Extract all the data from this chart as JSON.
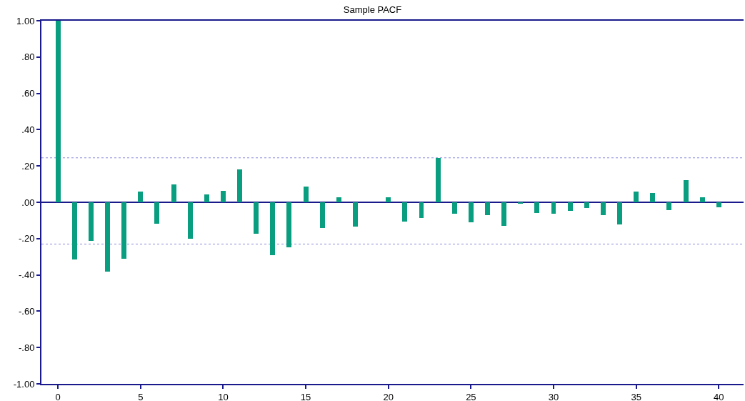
{
  "chart_data": {
    "type": "bar",
    "title": "Sample PACF",
    "x": [
      0,
      1,
      2,
      3,
      4,
      5,
      6,
      7,
      8,
      9,
      10,
      11,
      12,
      13,
      14,
      15,
      16,
      17,
      18,
      19,
      20,
      21,
      22,
      23,
      24,
      25,
      26,
      27,
      28,
      29,
      30,
      31,
      32,
      33,
      34,
      35,
      36,
      37,
      38,
      39,
      40
    ],
    "values": [
      1.0,
      -0.316,
      -0.213,
      -0.381,
      -0.31,
      0.058,
      -0.118,
      0.1,
      -0.2,
      0.045,
      0.063,
      0.183,
      -0.172,
      -0.291,
      -0.249,
      0.086,
      -0.141,
      0.026,
      -0.135,
      0,
      0.026,
      -0.105,
      -0.086,
      0.244,
      -0.063,
      -0.111,
      -0.069,
      -0.128,
      -0.008,
      -0.058,
      -0.063,
      -0.046,
      -0.033,
      -0.069,
      -0.123,
      0.058,
      0.051,
      -0.045,
      0.123,
      0.026,
      -0.026
    ],
    "color": "#0a9e80",
    "xlim": [
      -1,
      41.5
    ],
    "xticks": [
      0,
      5,
      10,
      15,
      20,
      25,
      30,
      35,
      40
    ],
    "ylim": [
      -1,
      1
    ],
    "yticks": [
      {
        "value": -1,
        "label": "-1.00"
      },
      {
        "value": -0.8,
        "label": "-.80"
      },
      {
        "value": -0.6,
        "label": "-.60"
      },
      {
        "value": -0.4,
        "label": "-.40"
      },
      {
        "value": -0.2,
        "label": "-.20"
      },
      {
        "value": 0,
        "label": ".00"
      },
      {
        "value": 0.2,
        "label": ".20"
      },
      {
        "value": 0.4,
        "label": ".40"
      },
      {
        "value": 0.6,
        "label": ".60"
      },
      {
        "value": 0.8,
        "label": ".80"
      },
      {
        "value": 1,
        "label": "1.00"
      }
    ],
    "ref_lines": [
      {
        "axis": "y",
        "value": 0,
        "label": null,
        "color": "#1a1a8c",
        "line_style": "solid"
      },
      {
        "axis": "y",
        "value": 0.245,
        "label": null,
        "color": "#8c8cdc",
        "line_style": "dotted"
      },
      {
        "axis": "y",
        "value": -0.23,
        "label": null,
        "color": "#8c8cdc",
        "line_style": "dotted"
      }
    ],
    "grid": false
  }
}
